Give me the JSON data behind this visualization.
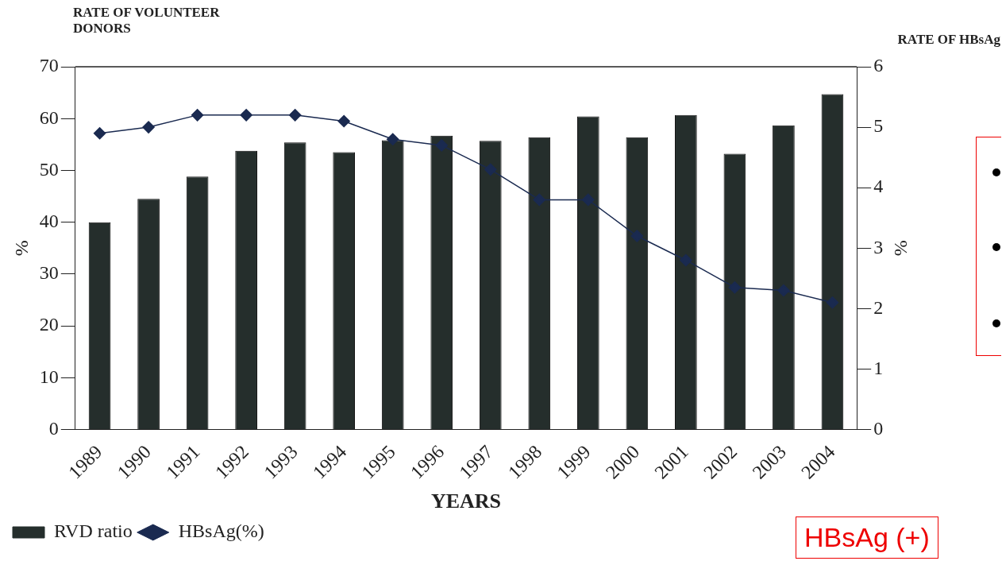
{
  "chart_data": {
    "type": "bar",
    "xlabel": "YEARS",
    "ylabel": "%",
    "y2label": "%",
    "categories": [
      "1989",
      "1990",
      "1991",
      "1992",
      "1993",
      "1994",
      "1995",
      "1996",
      "1997",
      "1998",
      "1999",
      "2000",
      "2001",
      "2002",
      "2003",
      "2004"
    ],
    "series": [
      {
        "name": "RVD ratio",
        "color": "#252e2c",
        "values": [
          40,
          44.5,
          48.8,
          53.8,
          55.4,
          53.5,
          55.8,
          56.7,
          55.7,
          56.4,
          60.4,
          56.4,
          60.7,
          53.2,
          58.7,
          64.7
        ]
      },
      {
        "name": "HBsAg(%)",
        "type": "line",
        "axis": "y2",
        "color": "#1a2a50",
        "values": [
          4.9,
          5.0,
          5.2,
          5.2,
          5.2,
          5.1,
          4.8,
          4.7,
          4.3,
          3.8,
          3.8,
          3.2,
          2.8,
          2.35,
          2.3,
          2.1
        ]
      }
    ],
    "ylim": [
      0,
      70
    ],
    "yticks": [
      0,
      10,
      20,
      30,
      40,
      50,
      60,
      70
    ],
    "y2lim": [
      0,
      6
    ],
    "y2ticks": [
      0,
      1,
      2,
      3,
      4,
      5,
      6
    ],
    "marker": "diamond",
    "legend": "bottom left",
    "grid": false,
    "annotations": [
      "RATE OF VOLUNTEER DONORS",
      "RATE OF HBsAg",
      "HBsAg (+)"
    ]
  }
}
